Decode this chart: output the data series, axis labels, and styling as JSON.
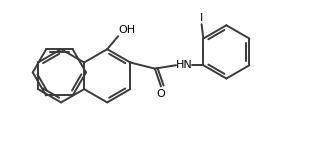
{
  "line_color": "#3a3a3a",
  "line_width": 1.4,
  "background": "#ffffff",
  "text_color": "#000000",
  "font_size": 8,
  "figsize": [
    3.27,
    1.55
  ],
  "dpi": 100,
  "xlim": [
    0,
    9.5
  ],
  "ylim": [
    0,
    4.5
  ],
  "ring_r": 0.78
}
